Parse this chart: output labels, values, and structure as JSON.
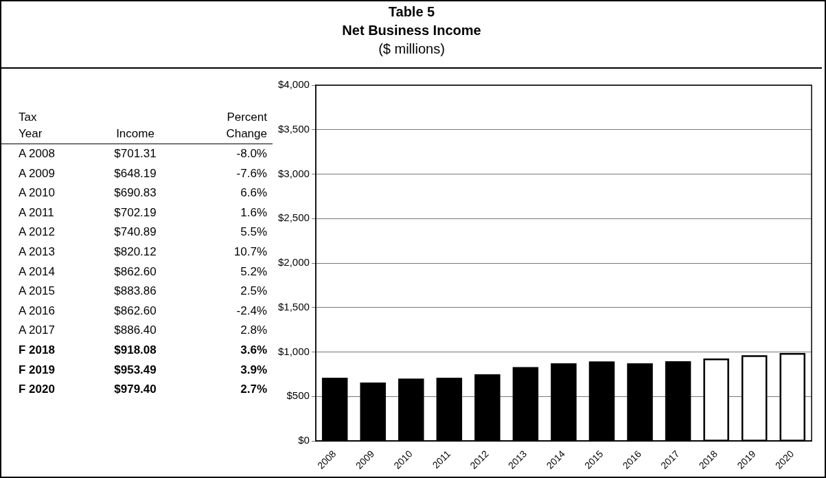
{
  "chart_data": [
    {
      "type": "other",
      "title": "Table 5",
      "subtitle": "Net Business Income",
      "annotations": [
        "($ millions)"
      ],
      "xlabel": "Tax Year",
      "categories": [
        "A 2008",
        "A 2009",
        "A 2010",
        "A 2011",
        "A 2012",
        "A 2013",
        "A 2014",
        "A 2015",
        "A 2016",
        "A 2017",
        "F 2018",
        "F 2019",
        "F 2020"
      ],
      "series": [
        {
          "name": "Income",
          "values": [
            701.31,
            648.19,
            690.83,
            702.19,
            740.89,
            820.12,
            862.6,
            883.86,
            862.6,
            886.4,
            918.08,
            953.49,
            979.4
          ],
          "value_labels": [
            "$701.31",
            "$648.19",
            "$690.83",
            "$702.19",
            "$740.89",
            "$820.12",
            "$862.60",
            "$883.86",
            "$862.60",
            "$886.40",
            "$918.08",
            "$953.49",
            "$979.40"
          ]
        },
        {
          "name": "Percent Change",
          "values": [
            -8.0,
            -7.6,
            6.6,
            1.6,
            5.5,
            10.7,
            5.2,
            2.5,
            -2.4,
            2.8,
            3.6,
            3.9,
            2.7
          ],
          "value_labels": [
            "-8.0%",
            "-7.6%",
            "6.6%",
            "1.6%",
            "5.5%",
            "10.7%",
            "5.2%",
            "2.5%",
            "-2.4%",
            "2.8%",
            "3.6%",
            "3.9%",
            "2.7%"
          ]
        }
      ]
    },
    {
      "type": "bar",
      "categories": [
        "2008",
        "2009",
        "2010",
        "2011",
        "2012",
        "2013",
        "2014",
        "2015",
        "2016",
        "2017",
        "2018",
        "2019",
        "2020"
      ],
      "values": [
        701.31,
        648.19,
        690.83,
        702.19,
        740.89,
        820.12,
        862.6,
        883.86,
        862.6,
        886.4,
        918.08,
        953.49,
        979.4
      ],
      "colors": [
        "#000000",
        "#000000",
        "#000000",
        "#000000",
        "#000000",
        "#000000",
        "#000000",
        "#000000",
        "#000000",
        "#000000",
        "#ffffff",
        "#ffffff",
        "#ffffff"
      ],
      "ylim": [
        0,
        4000
      ],
      "yticks": [
        {
          "value": 0,
          "label": "$0"
        },
        {
          "value": 500,
          "label": "$500"
        },
        {
          "value": 1000,
          "label": "$1,000"
        },
        {
          "value": 1500,
          "label": "$1,500"
        },
        {
          "value": 2000,
          "label": "$2,000"
        },
        {
          "value": 2500,
          "label": "$2,500"
        },
        {
          "value": 3000,
          "label": "$3,000"
        },
        {
          "value": 3500,
          "label": "$3,500"
        },
        {
          "value": 4000,
          "label": "$4,000"
        }
      ],
      "grid": "y",
      "legend": false
    }
  ]
}
